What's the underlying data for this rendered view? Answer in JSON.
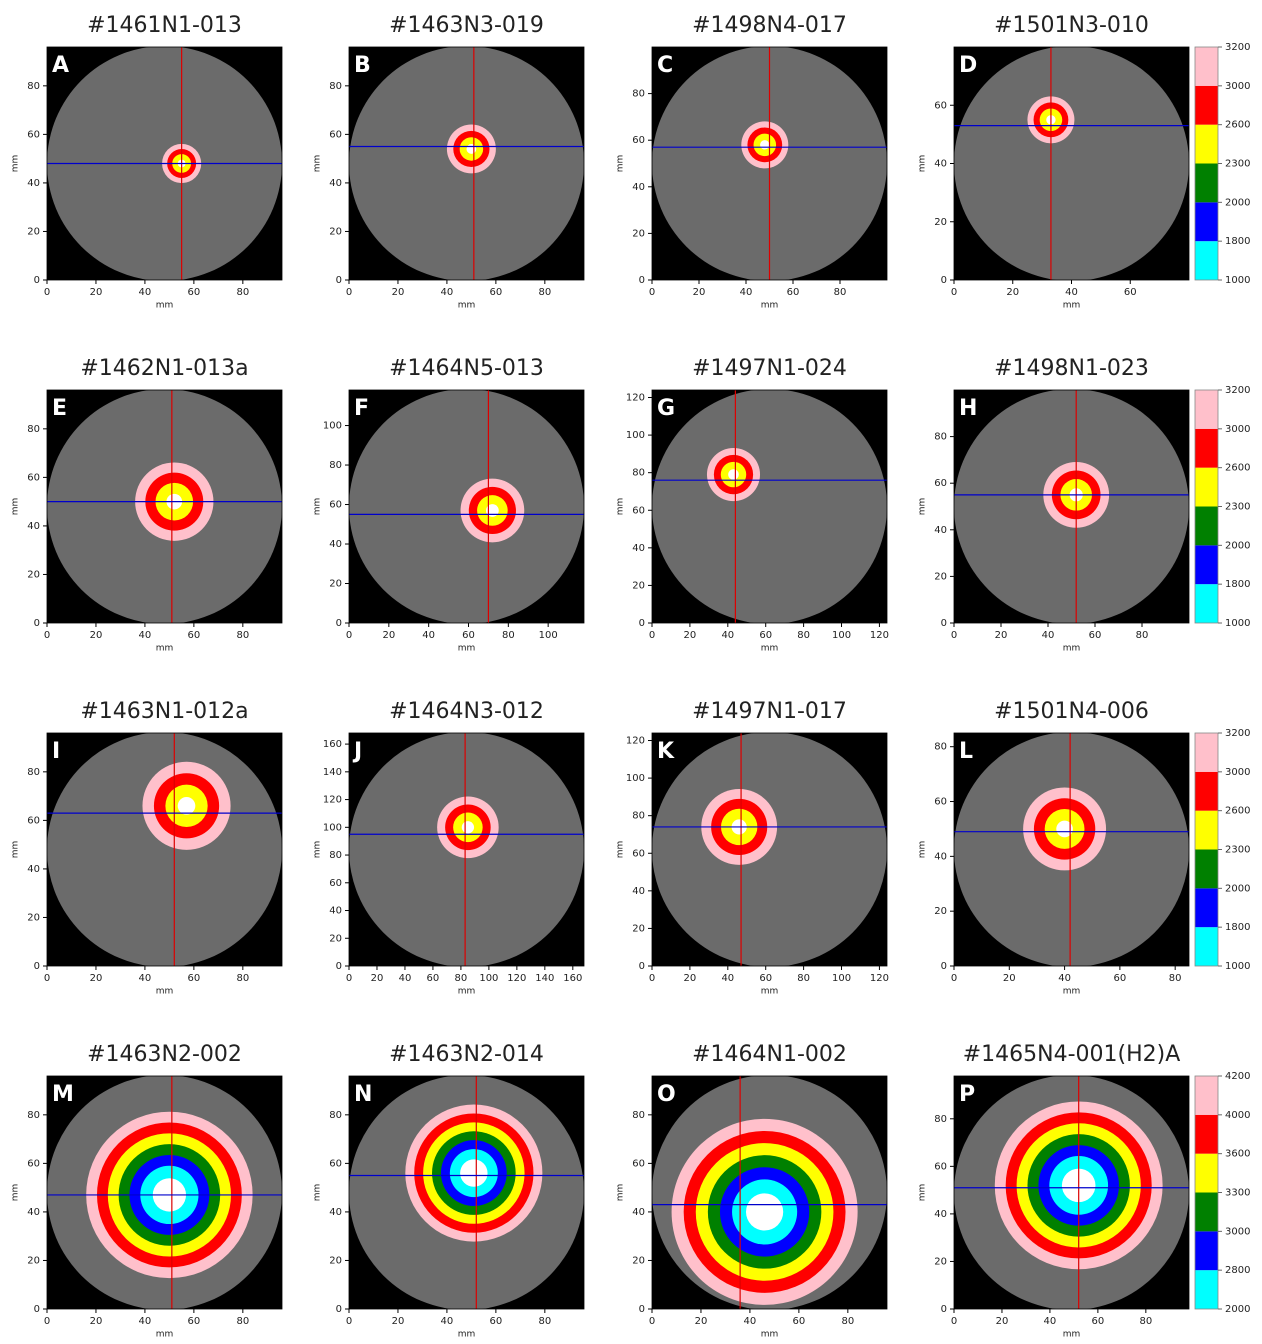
{
  "chart_data": [
    {
      "type": "image",
      "title": "#1461N1-013",
      "letter": "A",
      "xlabel": "mm",
      "ylabel": "mm",
      "xlim": [
        0,
        96
      ],
      "ylim": [
        0,
        96
      ],
      "xticks": [
        0,
        20,
        40,
        60,
        80
      ],
      "yticks": [
        0,
        20,
        40,
        60,
        80
      ],
      "crosshair": {
        "x": 55,
        "y": 48,
        "x_color": "#dd0000",
        "y_color": "#0000cc"
      },
      "blob": {
        "center": [
          55,
          48
        ],
        "radius": 8
      }
    },
    {
      "type": "image",
      "title": "#1463N3-019",
      "letter": "B",
      "xlabel": "mm",
      "ylabel": "mm",
      "xlim": [
        0,
        96
      ],
      "ylim": [
        0,
        96
      ],
      "xticks": [
        0,
        20,
        40,
        60,
        80
      ],
      "yticks": [
        0,
        20,
        40,
        60,
        80
      ],
      "crosshair": {
        "x": 51,
        "y": 55,
        "x_color": "#dd0000",
        "y_color": "#0000cc"
      },
      "blob": {
        "center": [
          50,
          54
        ],
        "radius": 10
      }
    },
    {
      "type": "image",
      "title": "#1498N4-017",
      "letter": "C",
      "xlabel": "mm",
      "ylabel": "mm",
      "xlim": [
        0,
        100
      ],
      "ylim": [
        0,
        100
      ],
      "xticks": [
        0,
        20,
        40,
        60,
        80
      ],
      "yticks": [
        0,
        20,
        40,
        60,
        80
      ],
      "crosshair": {
        "x": 50,
        "y": 57,
        "x_color": "#dd0000",
        "y_color": "#0000cc"
      },
      "blob": {
        "center": [
          48,
          58
        ],
        "radius": 10
      }
    },
    {
      "type": "image",
      "title": "#1501N3-010",
      "letter": "D",
      "xlabel": "mm",
      "ylabel": "mm",
      "xlim": [
        0,
        80
      ],
      "ylim": [
        0,
        80
      ],
      "xticks": [
        0,
        20,
        40,
        60
      ],
      "yticks": [
        0,
        20,
        40,
        60
      ],
      "crosshair": {
        "x": 33,
        "y": 53,
        "x_color": "#dd0000",
        "y_color": "#0000cc"
      },
      "blob": {
        "center": [
          33,
          55
        ],
        "radius": 8
      }
    },
    {
      "type": "image",
      "title": "#1462N1-013a",
      "letter": "E",
      "xlabel": "mm",
      "ylabel": "mm",
      "xlim": [
        0,
        96
      ],
      "ylim": [
        0,
        96
      ],
      "xticks": [
        0,
        20,
        40,
        60,
        80
      ],
      "yticks": [
        0,
        20,
        40,
        60,
        80
      ],
      "crosshair": {
        "x": 51,
        "y": 50,
        "x_color": "#dd0000",
        "y_color": "#0000cc"
      },
      "blob": {
        "center": [
          52,
          50
        ],
        "radius": 16
      }
    },
    {
      "type": "image",
      "title": "#1464N5-013",
      "letter": "F",
      "xlabel": "mm",
      "ylabel": "mm",
      "xlim": [
        0,
        118
      ],
      "ylim": [
        0,
        118
      ],
      "xticks": [
        0,
        20,
        40,
        60,
        80,
        100
      ],
      "yticks": [
        0,
        20,
        40,
        60,
        80,
        100
      ],
      "crosshair": {
        "x": 70,
        "y": 55,
        "x_color": "#dd0000",
        "y_color": "#0000cc"
      },
      "blob": {
        "center": [
          72,
          57
        ],
        "radius": 16
      }
    },
    {
      "type": "image",
      "title": "#1497N1-024",
      "letter": "G",
      "xlabel": "mm",
      "ylabel": "mm",
      "xlim": [
        0,
        124
      ],
      "ylim": [
        0,
        124
      ],
      "xticks": [
        0,
        20,
        40,
        60,
        80,
        100,
        120
      ],
      "yticks": [
        0,
        20,
        40,
        60,
        80,
        100,
        120
      ],
      "crosshair": {
        "x": 44,
        "y": 76,
        "x_color": "#dd0000",
        "y_color": "#0000cc"
      },
      "blob": {
        "center": [
          43,
          79
        ],
        "radius": 14
      }
    },
    {
      "type": "image",
      "title": "#1498N1-023",
      "letter": "H",
      "xlabel": "mm",
      "ylabel": "mm",
      "xlim": [
        0,
        100
      ],
      "ylim": [
        0,
        100
      ],
      "xticks": [
        0,
        20,
        40,
        60,
        80
      ],
      "yticks": [
        0,
        20,
        40,
        60,
        80
      ],
      "crosshair": {
        "x": 52,
        "y": 55,
        "x_color": "#dd0000",
        "y_color": "#0000cc"
      },
      "blob": {
        "center": [
          52,
          55
        ],
        "radius": 14
      }
    },
    {
      "type": "image",
      "title": "#1463N1-012a",
      "letter": "I",
      "xlabel": "mm",
      "ylabel": "mm",
      "xlim": [
        0,
        96
      ],
      "ylim": [
        0,
        96
      ],
      "xticks": [
        0,
        20,
        40,
        60,
        80
      ],
      "yticks": [
        0,
        20,
        40,
        60,
        80
      ],
      "crosshair": {
        "x": 52,
        "y": 63,
        "x_color": "#dd0000",
        "y_color": "#0000cc"
      },
      "blob": {
        "center": [
          57,
          66
        ],
        "radius": 18
      }
    },
    {
      "type": "image",
      "title": "#1464N3-012",
      "letter": "J",
      "xlabel": "mm",
      "ylabel": "mm",
      "xlim": [
        0,
        168
      ],
      "ylim": [
        0,
        168
      ],
      "xticks": [
        0,
        20,
        40,
        60,
        80,
        100,
        120,
        140,
        160
      ],
      "yticks": [
        0,
        20,
        40,
        60,
        80,
        100,
        120,
        140,
        160
      ],
      "crosshair": {
        "x": 83,
        "y": 95,
        "x_color": "#dd0000",
        "y_color": "#0000cc"
      },
      "blob": {
        "center": [
          85,
          100
        ],
        "radius": 22
      }
    },
    {
      "type": "image",
      "title": "#1497N1-017",
      "letter": "K",
      "xlabel": "mm",
      "ylabel": "mm",
      "xlim": [
        0,
        124
      ],
      "ylim": [
        0,
        124
      ],
      "xticks": [
        0,
        20,
        40,
        60,
        80,
        100,
        120
      ],
      "yticks": [
        0,
        20,
        40,
        60,
        80,
        100,
        120
      ],
      "crosshair": {
        "x": 47,
        "y": 74,
        "x_color": "#dd0000",
        "y_color": "#0000cc"
      },
      "blob": {
        "center": [
          46,
          74
        ],
        "radius": 20
      }
    },
    {
      "type": "image",
      "title": "#1501N4-006",
      "letter": "L",
      "xlabel": "mm",
      "ylabel": "mm",
      "xlim": [
        0,
        85
      ],
      "ylim": [
        0,
        85
      ],
      "xticks": [
        0,
        20,
        40,
        60,
        80
      ],
      "yticks": [
        0,
        20,
        40,
        60,
        80
      ],
      "crosshair": {
        "x": 42,
        "y": 49,
        "x_color": "#dd0000",
        "y_color": "#0000cc"
      },
      "blob": {
        "center": [
          40,
          50
        ],
        "radius": 15
      }
    },
    {
      "type": "image",
      "title": "#1463N2-002",
      "letter": "M",
      "xlabel": "mm",
      "ylabel": "mm",
      "xlim": [
        0,
        96
      ],
      "ylim": [
        0,
        96
      ],
      "xticks": [
        0,
        20,
        40,
        60,
        80
      ],
      "yticks": [
        0,
        20,
        40,
        60,
        80
      ],
      "crosshair": {
        "x": 51,
        "y": 47,
        "x_color": "#dd0000",
        "y_color": "#0000cc"
      },
      "blob": {
        "center": [
          50,
          47
        ],
        "radius": 34
      }
    },
    {
      "type": "image",
      "title": "#1463N2-014",
      "letter": "N",
      "xlabel": "mm",
      "ylabel": "mm",
      "xlim": [
        0,
        96
      ],
      "ylim": [
        0,
        96
      ],
      "xticks": [
        0,
        20,
        40,
        60,
        80
      ],
      "yticks": [
        0,
        20,
        40,
        60,
        80
      ],
      "crosshair": {
        "x": 52,
        "y": 55,
        "x_color": "#dd0000",
        "y_color": "#0000cc"
      },
      "blob": {
        "center": [
          51,
          56
        ],
        "radius": 28
      }
    },
    {
      "type": "image",
      "title": "#1464N1-002",
      "letter": "O",
      "xlabel": "mm",
      "ylabel": "mm",
      "xlim": [
        0,
        96
      ],
      "ylim": [
        0,
        96
      ],
      "xticks": [
        0,
        20,
        40,
        60,
        80
      ],
      "yticks": [
        0,
        20,
        40,
        60,
        80
      ],
      "crosshair": {
        "x": 36,
        "y": 43,
        "x_color": "#dd0000",
        "y_color": "#0000cc"
      },
      "blob": {
        "center": [
          46,
          40
        ],
        "radius": 38
      }
    },
    {
      "type": "image",
      "title": "#1465N4-001(H2)A",
      "letter": "P",
      "xlabel": "mm",
      "ylabel": "mm",
      "xlim": [
        0,
        98
      ],
      "ylim": [
        0,
        98
      ],
      "xticks": [
        0,
        20,
        40,
        60,
        80
      ],
      "yticks": [
        0,
        20,
        40,
        60,
        80
      ],
      "crosshair": {
        "x": 52,
        "y": 51,
        "x_color": "#dd0000",
        "y_color": "#0000cc"
      },
      "blob": {
        "center": [
          52,
          52
        ],
        "radius": 35
      }
    },
    {
      "type": "colorbar",
      "ticks": [
        1000,
        1800,
        2000,
        2300,
        2600,
        3000,
        3200
      ],
      "colors": [
        "#00ffff",
        "#0000ff",
        "#008000",
        "#ffff00",
        "#ff0000",
        "#ffc0cb"
      ]
    },
    {
      "type": "colorbar",
      "ticks": [
        1000,
        1800,
        2000,
        2300,
        2600,
        3000,
        3200
      ],
      "colors": [
        "#00ffff",
        "#0000ff",
        "#008000",
        "#ffff00",
        "#ff0000",
        "#ffc0cb"
      ]
    },
    {
      "type": "colorbar",
      "ticks": [
        1000,
        1800,
        2000,
        2300,
        2600,
        3000,
        3200
      ],
      "colors": [
        "#00ffff",
        "#0000ff",
        "#008000",
        "#ffff00",
        "#ff0000",
        "#ffc0cb"
      ]
    },
    {
      "type": "colorbar",
      "ticks": [
        2000,
        2800,
        3000,
        3300,
        3600,
        4000,
        4200
      ],
      "colors": [
        "#00ffff",
        "#0000ff",
        "#008000",
        "#ffff00",
        "#ff0000",
        "#ffc0cb"
      ]
    }
  ]
}
